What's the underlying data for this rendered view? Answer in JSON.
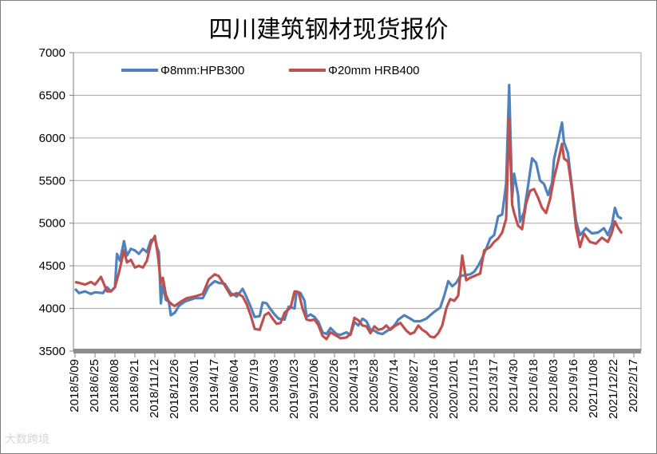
{
  "chart_data": {
    "type": "line",
    "title": "四川建筑钢材现货报价",
    "xlabel": "",
    "ylabel": "",
    "ylim": [
      3500,
      7000
    ],
    "yticks": [
      3500,
      4000,
      4500,
      5000,
      5500,
      6000,
      6500,
      7000
    ],
    "grid": "horizontal",
    "legend": "top",
    "categories": [
      "2018/5/09",
      "2018/6/25",
      "2018/8/08",
      "2018/9/21",
      "2018/11/12",
      "2018/12/26",
      "2019/3/01",
      "2019/4/17",
      "2019/6/04",
      "2019/7/19",
      "2019/9/03",
      "2019/10/23",
      "2019/12/06",
      "2020/2/26",
      "2020/4/13",
      "2020/5/28",
      "2020/7/14",
      "2020/8/27",
      "2020/10/16",
      "2020/12/01",
      "2021/1/15",
      "2021/3/17",
      "2021/4/30",
      "2021/6/18",
      "2021/8/03",
      "2021/9/16",
      "2021/11/08",
      "2021/12/22",
      "2022/2/17"
    ],
    "series": [
      {
        "name": "Φ8mm:HPB300",
        "color": "#4f81bd",
        "points": [
          [
            0,
            4230
          ],
          [
            0.2,
            4180
          ],
          [
            0.5,
            4200
          ],
          [
            0.8,
            4170
          ],
          [
            1,
            4190
          ],
          [
            1.4,
            4180
          ],
          [
            1.6,
            4250
          ],
          [
            1.8,
            4200
          ],
          [
            2,
            4250
          ],
          [
            2.1,
            4640
          ],
          [
            2.25,
            4560
          ],
          [
            2.45,
            4790
          ],
          [
            2.6,
            4620
          ],
          [
            2.8,
            4700
          ],
          [
            3,
            4680
          ],
          [
            3.2,
            4640
          ],
          [
            3.4,
            4700
          ],
          [
            3.6,
            4660
          ],
          [
            3.8,
            4800
          ],
          [
            4,
            4820
          ],
          [
            4.1,
            4720
          ],
          [
            4.2,
            4660
          ],
          [
            4.3,
            4060
          ],
          [
            4.4,
            4280
          ],
          [
            4.55,
            4100
          ],
          [
            4.7,
            4080
          ],
          [
            4.8,
            3920
          ],
          [
            5,
            3950
          ],
          [
            5.2,
            4030
          ],
          [
            5.5,
            4080
          ],
          [
            6,
            4120
          ],
          [
            6.4,
            4120
          ],
          [
            6.7,
            4260
          ],
          [
            7,
            4320
          ],
          [
            7.2,
            4300
          ],
          [
            7.5,
            4290
          ],
          [
            7.8,
            4180
          ],
          [
            8.1,
            4140
          ],
          [
            8.4,
            4230
          ],
          [
            8.6,
            4130
          ],
          [
            8.8,
            4020
          ],
          [
            9,
            3900
          ],
          [
            9.25,
            3910
          ],
          [
            9.4,
            4070
          ],
          [
            9.6,
            4060
          ],
          [
            9.8,
            3990
          ],
          [
            10,
            3930
          ],
          [
            10.2,
            3880
          ],
          [
            10.5,
            3870
          ],
          [
            10.7,
            4020
          ],
          [
            11,
            4000
          ],
          [
            11.1,
            4200
          ],
          [
            11.3,
            4180
          ],
          [
            11.5,
            4090
          ],
          [
            11.6,
            3900
          ],
          [
            11.8,
            3930
          ],
          [
            12,
            3900
          ],
          [
            12.2,
            3840
          ],
          [
            12.4,
            3720
          ],
          [
            12.6,
            3700
          ],
          [
            12.8,
            3770
          ],
          [
            13.1,
            3700
          ],
          [
            13.3,
            3690
          ],
          [
            13.6,
            3720
          ],
          [
            13.8,
            3690
          ],
          [
            14,
            3840
          ],
          [
            14.2,
            3800
          ],
          [
            14.4,
            3880
          ],
          [
            14.6,
            3850
          ],
          [
            14.8,
            3750
          ],
          [
            15,
            3740
          ],
          [
            15.2,
            3710
          ],
          [
            15.4,
            3700
          ],
          [
            15.6,
            3730
          ],
          [
            15.8,
            3760
          ],
          [
            16,
            3800
          ],
          [
            16.2,
            3870
          ],
          [
            16.5,
            3920
          ],
          [
            16.8,
            3880
          ],
          [
            17,
            3850
          ],
          [
            17.3,
            3850
          ],
          [
            17.6,
            3880
          ],
          [
            18,
            3960
          ],
          [
            18.3,
            4010
          ],
          [
            18.5,
            4150
          ],
          [
            18.7,
            4320
          ],
          [
            18.9,
            4260
          ],
          [
            19.1,
            4300
          ],
          [
            19.3,
            4380
          ],
          [
            19.5,
            4390
          ],
          [
            19.8,
            4400
          ],
          [
            20,
            4430
          ],
          [
            20.2,
            4500
          ],
          [
            20.4,
            4590
          ],
          [
            20.6,
            4700
          ],
          [
            20.8,
            4820
          ],
          [
            21,
            4860
          ],
          [
            21.2,
            5080
          ],
          [
            21.4,
            5100
          ],
          [
            21.6,
            5460
          ],
          [
            21.75,
            6620
          ],
          [
            21.9,
            5300
          ],
          [
            22,
            5580
          ],
          [
            22.2,
            5330
          ],
          [
            22.3,
            5020
          ],
          [
            22.5,
            5130
          ],
          [
            22.7,
            5440
          ],
          [
            22.9,
            5760
          ],
          [
            23.1,
            5710
          ],
          [
            23.3,
            5500
          ],
          [
            23.5,
            5460
          ],
          [
            23.7,
            5330
          ],
          [
            23.9,
            5470
          ],
          [
            24,
            5750
          ],
          [
            24.2,
            5960
          ],
          [
            24.4,
            6180
          ],
          [
            24.5,
            5950
          ],
          [
            24.7,
            5820
          ],
          [
            24.9,
            5420
          ],
          [
            25.1,
            5030
          ],
          [
            25.3,
            4860
          ],
          [
            25.6,
            4940
          ],
          [
            25.9,
            4880
          ],
          [
            26.2,
            4890
          ],
          [
            26.5,
            4940
          ],
          [
            26.7,
            4860
          ],
          [
            26.9,
            4980
          ],
          [
            27.05,
            5180
          ],
          [
            27.2,
            5080
          ],
          [
            27.4,
            5050
          ]
        ]
      },
      {
        "name": "Φ20mm HRB400",
        "color": "#c0504d",
        "points": [
          [
            0,
            4310
          ],
          [
            0.2,
            4300
          ],
          [
            0.5,
            4280
          ],
          [
            0.8,
            4310
          ],
          [
            1,
            4280
          ],
          [
            1.3,
            4370
          ],
          [
            1.6,
            4200
          ],
          [
            1.8,
            4200
          ],
          [
            2,
            4250
          ],
          [
            2.2,
            4420
          ],
          [
            2.45,
            4680
          ],
          [
            2.6,
            4540
          ],
          [
            2.8,
            4570
          ],
          [
            3,
            4480
          ],
          [
            3.2,
            4500
          ],
          [
            3.4,
            4480
          ],
          [
            3.6,
            4560
          ],
          [
            3.8,
            4760
          ],
          [
            4,
            4850
          ],
          [
            4.15,
            4620
          ],
          [
            4.3,
            4300
          ],
          [
            4.4,
            4360
          ],
          [
            4.55,
            4160
          ],
          [
            4.7,
            4080
          ],
          [
            4.9,
            4040
          ],
          [
            5,
            4030
          ],
          [
            5.3,
            4080
          ],
          [
            5.6,
            4120
          ],
          [
            6,
            4140
          ],
          [
            6.4,
            4170
          ],
          [
            6.7,
            4340
          ],
          [
            7,
            4400
          ],
          [
            7.2,
            4380
          ],
          [
            7.5,
            4270
          ],
          [
            7.8,
            4150
          ],
          [
            8.1,
            4180
          ],
          [
            8.4,
            4140
          ],
          [
            8.6,
            4050
          ],
          [
            8.8,
            3920
          ],
          [
            9,
            3760
          ],
          [
            9.25,
            3750
          ],
          [
            9.5,
            3920
          ],
          [
            9.7,
            3950
          ],
          [
            9.9,
            3880
          ],
          [
            10.1,
            3820
          ],
          [
            10.3,
            3830
          ],
          [
            10.5,
            3950
          ],
          [
            10.8,
            4010
          ],
          [
            11,
            4200
          ],
          [
            11.2,
            4190
          ],
          [
            11.4,
            4000
          ],
          [
            11.6,
            3870
          ],
          [
            11.8,
            3860
          ],
          [
            12,
            3870
          ],
          [
            12.2,
            3800
          ],
          [
            12.4,
            3680
          ],
          [
            12.6,
            3640
          ],
          [
            12.8,
            3720
          ],
          [
            13.1,
            3680
          ],
          [
            13.3,
            3650
          ],
          [
            13.6,
            3660
          ],
          [
            13.8,
            3700
          ],
          [
            14,
            3890
          ],
          [
            14.2,
            3860
          ],
          [
            14.4,
            3800
          ],
          [
            14.6,
            3790
          ],
          [
            14.8,
            3710
          ],
          [
            15,
            3790
          ],
          [
            15.2,
            3750
          ],
          [
            15.4,
            3760
          ],
          [
            15.6,
            3800
          ],
          [
            15.8,
            3750
          ],
          [
            16,
            3790
          ],
          [
            16.3,
            3830
          ],
          [
            16.6,
            3740
          ],
          [
            16.8,
            3700
          ],
          [
            17,
            3720
          ],
          [
            17.2,
            3800
          ],
          [
            17.4,
            3750
          ],
          [
            17.6,
            3720
          ],
          [
            17.8,
            3670
          ],
          [
            18,
            3660
          ],
          [
            18.2,
            3710
          ],
          [
            18.4,
            3800
          ],
          [
            18.6,
            4000
          ],
          [
            18.8,
            4110
          ],
          [
            19,
            4090
          ],
          [
            19.2,
            4150
          ],
          [
            19.4,
            4620
          ],
          [
            19.6,
            4330
          ],
          [
            19.8,
            4360
          ],
          [
            20,
            4380
          ],
          [
            20.3,
            4410
          ],
          [
            20.5,
            4680
          ],
          [
            20.8,
            4720
          ],
          [
            21,
            4780
          ],
          [
            21.2,
            4820
          ],
          [
            21.4,
            4890
          ],
          [
            21.6,
            5050
          ],
          [
            21.75,
            6220
          ],
          [
            21.9,
            5220
          ],
          [
            22,
            5120
          ],
          [
            22.2,
            4970
          ],
          [
            22.4,
            4930
          ],
          [
            22.6,
            5230
          ],
          [
            22.8,
            5380
          ],
          [
            23,
            5400
          ],
          [
            23.2,
            5300
          ],
          [
            23.4,
            5180
          ],
          [
            23.6,
            5120
          ],
          [
            23.8,
            5280
          ],
          [
            24,
            5530
          ],
          [
            24.2,
            5720
          ],
          [
            24.4,
            5930
          ],
          [
            24.5,
            5760
          ],
          [
            24.7,
            5720
          ],
          [
            24.9,
            5400
          ],
          [
            25.1,
            4950
          ],
          [
            25.3,
            4720
          ],
          [
            25.5,
            4880
          ],
          [
            25.8,
            4780
          ],
          [
            26.1,
            4760
          ],
          [
            26.4,
            4830
          ],
          [
            26.7,
            4780
          ],
          [
            26.9,
            4890
          ],
          [
            27.05,
            5020
          ],
          [
            27.2,
            4950
          ],
          [
            27.4,
            4880
          ]
        ]
      }
    ]
  },
  "watermark": "大数跨境"
}
